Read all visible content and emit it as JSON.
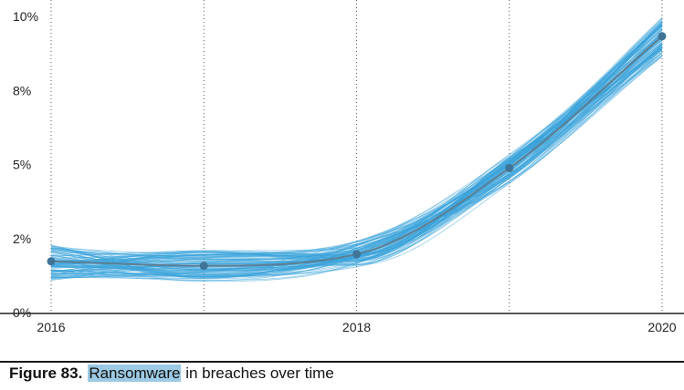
{
  "caption": {
    "figure_label": "Figure 83.",
    "highlight": "Ransomware",
    "rest": "in breaches over time"
  },
  "colors": {
    "band": "#3aa3dc",
    "median_line": "#5d7f94",
    "points": "#3f7496",
    "highlight": "#9cc9e3"
  },
  "chart_data": {
    "type": "line",
    "title": "",
    "xlabel": "",
    "ylabel": "",
    "x_ticks": [
      "2016",
      "2018",
      "2020"
    ],
    "y_ticks": [
      "0%",
      "2%",
      "5%",
      "8%",
      "10%"
    ],
    "xlim": [
      2016,
      2020
    ],
    "ylim": [
      0,
      10
    ],
    "y_tick_values": [
      0,
      2.5,
      5,
      7.5,
      10
    ],
    "gridlines_x": [
      2016,
      2017,
      2018,
      2019,
      2020
    ],
    "series": [
      {
        "x": [
          2016,
          2017,
          2018,
          2019,
          2020
        ],
        "y": [
          1.73,
          1.58,
          1.97,
          4.88,
          9.33
        ]
      }
    ]
  }
}
